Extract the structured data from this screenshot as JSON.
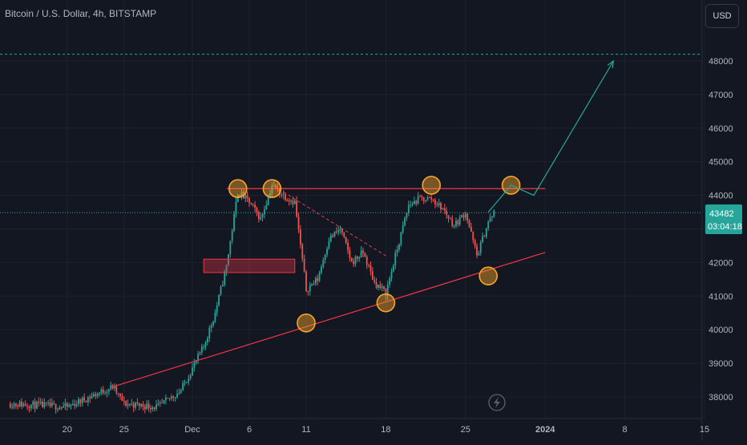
{
  "header": {
    "title": "Bitcoin / U.S. Dollar, 4h, BITSTAMP",
    "currency_button": "USD"
  },
  "price_badge": {
    "price": "43482",
    "countdown": "03:04:18"
  },
  "colors": {
    "background": "#131722",
    "up": "#26a69a",
    "down": "#ef5350",
    "annotation_line": "#f23645",
    "circle": "#f7a52b",
    "projection": "#26a69a"
  },
  "chart_data": {
    "type": "candlestick",
    "symbol": "BTCUSD",
    "interval": "4h",
    "ylim": [
      37600,
      49500
    ],
    "y_ticks": [
      38000,
      39000,
      40000,
      41000,
      42000,
      43000,
      44000,
      45000,
      46000,
      47000,
      48000
    ],
    "y_tick_labels": [
      "38000",
      "39000",
      "40000",
      "41000",
      "42000",
      "43000",
      "44000",
      "45000",
      "46000",
      "47000",
      "48000"
    ],
    "x_ticks": [
      {
        "label": "20",
        "day": -11
      },
      {
        "label": "25",
        "day": -6
      },
      {
        "label": "Dec",
        "day": 0
      },
      {
        "label": "6",
        "day": 5
      },
      {
        "label": "11",
        "day": 10
      },
      {
        "label": "18",
        "day": 17
      },
      {
        "label": "25",
        "day": 24
      },
      {
        "label": "2024",
        "day": 31
      },
      {
        "label": "8",
        "day": 38
      },
      {
        "label": "15",
        "day": 45
      }
    ],
    "anchors": [
      {
        "date": "Nov 15",
        "close": 37800
      },
      {
        "date": "Nov 20",
        "close": 37700
      },
      {
        "date": "Nov 24",
        "close": 38300
      },
      {
        "date": "Nov 25",
        "close": 37800
      },
      {
        "date": "Nov 28",
        "close": 37700
      },
      {
        "date": "Nov 30",
        "close": 38200
      },
      {
        "date": "Dec 2",
        "close": 39500
      },
      {
        "date": "Dec 3",
        "close": 40500
      },
      {
        "date": "Dec 4",
        "close": 41900
      },
      {
        "date": "Dec 5",
        "close": 44100
      },
      {
        "date": "Dec 6",
        "close": 43800
      },
      {
        "date": "Dec 7",
        "close": 43300
      },
      {
        "date": "Dec 8",
        "close": 44300
      },
      {
        "date": "Dec 9",
        "close": 44000
      },
      {
        "date": "Dec 10",
        "close": 43800
      },
      {
        "date": "Dec 11",
        "close": 41200
      },
      {
        "date": "Dec 12",
        "close": 41500
      },
      {
        "date": "Dec 13",
        "close": 42700
      },
      {
        "date": "Dec 14",
        "close": 43000
      },
      {
        "date": "Dec 15",
        "close": 42000
      },
      {
        "date": "Dec 16",
        "close": 42300
      },
      {
        "date": "Dec 17",
        "close": 41400
      },
      {
        "date": "Dec 18",
        "close": 41100
      },
      {
        "date": "Dec 19",
        "close": 42400
      },
      {
        "date": "Dec 20",
        "close": 43700
      },
      {
        "date": "Dec 21",
        "close": 43900
      },
      {
        "date": "Dec 22",
        "close": 43900
      },
      {
        "date": "Dec 23",
        "close": 43600
      },
      {
        "date": "Dec 24",
        "close": 43100
      },
      {
        "date": "Dec 25",
        "close": 43500
      },
      {
        "date": "Dec 26",
        "close": 42200
      },
      {
        "date": "Dec 27",
        "close": 43200
      },
      {
        "date": "Dec 27 12:00",
        "close": 43482
      }
    ],
    "current_price": 43482,
    "previous_high_level": 48200,
    "annotations": {
      "resistance": {
        "from_date": "Dec 4",
        "to_date": "Jan 1",
        "price": 44200
      },
      "support_trendline": {
        "from": {
          "date": "Nov 24",
          "price": 38300
        },
        "to": {
          "date": "Jan 1",
          "price": 42300
        }
      },
      "down_trendline": {
        "from": {
          "date": "Dec 9",
          "price": 44100
        },
        "to": {
          "date": "Dec 18",
          "price": 42200
        }
      },
      "box": {
        "from_date": "Dec 2",
        "to_date": "Dec 10",
        "low": 41700,
        "high": 42100
      },
      "marked_points": [
        {
          "date": "Dec 5",
          "price": 44200
        },
        {
          "date": "Dec 8",
          "price": 44200
        },
        {
          "date": "Dec 11",
          "price": 40200
        },
        {
          "date": "Dec 18",
          "price": 40800
        },
        {
          "date": "Dec 22",
          "price": 44300
        },
        {
          "date": "Dec 27",
          "price": 41600
        },
        {
          "date": "Dec 29",
          "price": 44300
        }
      ],
      "projection": [
        {
          "date": "Dec 27",
          "price": 43500
        },
        {
          "date": "Dec 29",
          "price": 44300
        },
        {
          "date": "Dec 31",
          "price": 44000
        },
        {
          "date": "Jan 7",
          "price": 48000
        }
      ]
    }
  }
}
